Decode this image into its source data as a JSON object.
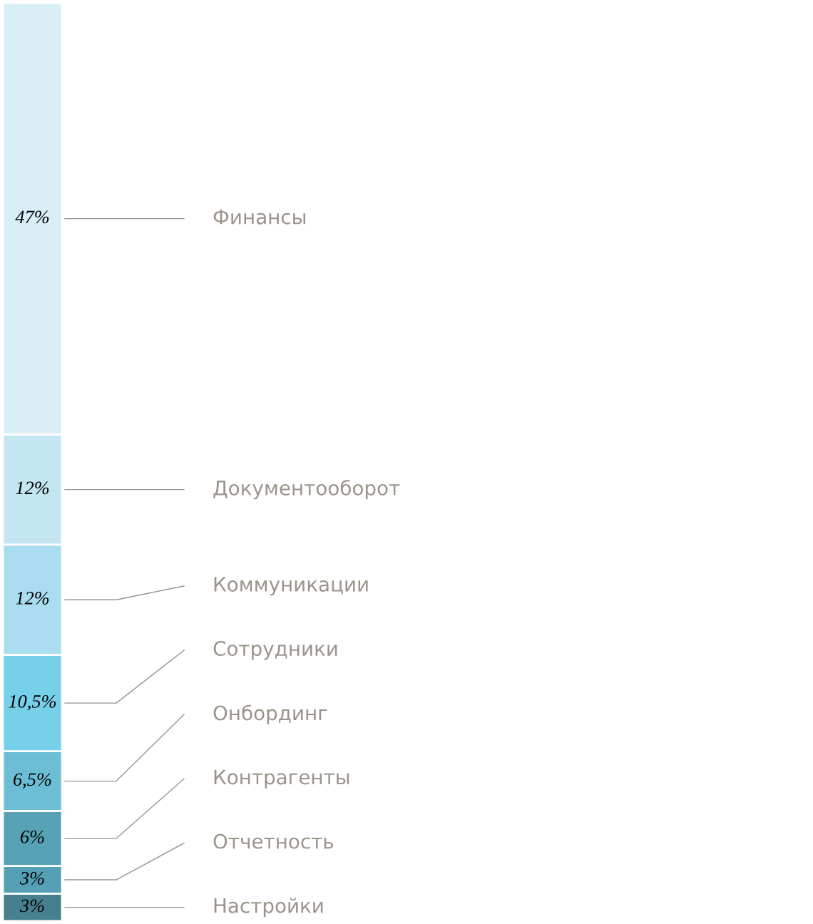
{
  "chart_data": {
    "type": "bar",
    "stacked": true,
    "categories": [
      null
    ],
    "series": [
      {
        "name": "Настройки",
        "color": "#46808f",
        "values": [
          3
        ],
        "value_labels": [
          "3%"
        ]
      },
      {
        "name": "Отчетность",
        "color": "#55a0b5",
        "values": [
          3
        ],
        "value_labels": [
          "3%"
        ]
      },
      {
        "name": "Контрагенты",
        "color": "#58a2b5",
        "values": [
          6
        ],
        "value_labels": [
          "6%"
        ]
      },
      {
        "name": "Онбординг",
        "color": "#6bbed5",
        "values": [
          6.5
        ],
        "value_labels": [
          "6,5%"
        ]
      },
      {
        "name": "Сотрудники",
        "color": "#76d0ea",
        "values": [
          10.5
        ],
        "value_labels": [
          "10,5%"
        ]
      },
      {
        "name": "Коммуникации",
        "color": "#a9ddef",
        "values": [
          12
        ],
        "value_labels": [
          "12%"
        ]
      },
      {
        "name": "Документооборот",
        "color": "#c4e6f3",
        "values": [
          12
        ],
        "value_labels": [
          "12%"
        ]
      },
      {
        "name": "Финансы",
        "color": "#d9eff7",
        "values": [
          47
        ],
        "value_labels": [
          "47%"
        ]
      }
    ]
  }
}
